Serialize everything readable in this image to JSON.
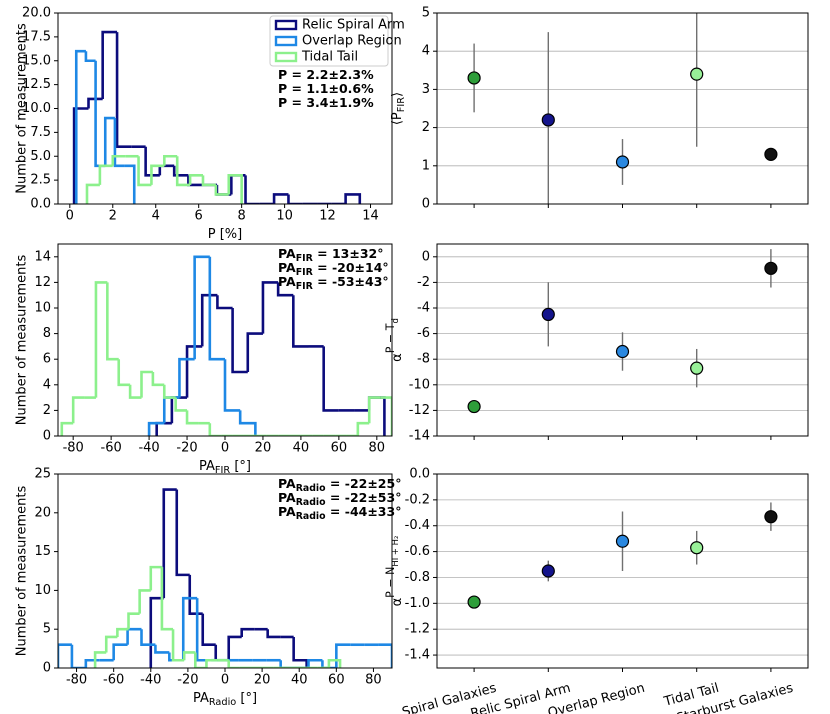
{
  "chart_data": [
    {
      "type": "histogram",
      "xlabel": {
        "main": "P [%]"
      },
      "ylabel": "Number of measurements",
      "xlim": [
        -0.55,
        15.0
      ],
      "xticks": [
        0,
        2,
        4,
        6,
        8,
        10,
        12,
        14
      ],
      "ylim": [
        0,
        20
      ],
      "yticks": [
        {
          "value": 0,
          "label": "0.0"
        },
        2.5,
        {
          "value": 5,
          "label": "5.0"
        },
        7.5,
        {
          "value": 10,
          "label": "10.0"
        },
        12.5,
        {
          "value": 15,
          "label": "15.0"
        },
        17.5,
        {
          "value": 20,
          "label": "20.0"
        }
      ],
      "legend": "upper right",
      "series": [
        {
          "name": "Relic Spiral Arm",
          "color": "#0c0c7c",
          "bins": [
            0.2,
            0.87,
            1.53,
            2.2,
            2.86,
            3.53,
            4.19,
            4.86,
            5.52,
            6.19,
            6.85,
            7.52,
            8.18,
            8.85,
            9.51,
            10.18,
            10.84,
            11.51,
            12.17,
            12.84,
            13.5
          ],
          "values": [
            10,
            11,
            18,
            6,
            6,
            3,
            4,
            3,
            2,
            2,
            1,
            3,
            0,
            0,
            1,
            0,
            0,
            0,
            0,
            1
          ]
        },
        {
          "name": "Overlap Region",
          "color": "#1e88e5",
          "bins": [
            0.3,
            0.75,
            1.2,
            1.65,
            2.1,
            2.55,
            3.0
          ],
          "values": [
            16,
            15,
            4,
            9,
            4,
            4
          ]
        },
        {
          "name": "Tidal Tail",
          "color": "#8cf08c",
          "bins": [
            0.8,
            1.4,
            2.0,
            2.6,
            3.2,
            3.8,
            4.4,
            5.0,
            5.6,
            6.2,
            6.8,
            7.4,
            8.0
          ],
          "values": [
            2,
            4,
            5,
            5,
            2,
            4,
            5,
            2,
            3,
            2,
            1,
            3
          ]
        }
      ],
      "annotations": [
        {
          "main": "P = 2.2±2.3%",
          "color": "#0c0c7c"
        },
        {
          "main": "P = 1.1±0.6%",
          "color": "#1e88e5"
        },
        {
          "main": "P = 3.4±1.9%",
          "color": "#8cf08c"
        }
      ]
    },
    {
      "type": "errorbar",
      "ylabel": {
        "main": "⟨P",
        "sub": "FIR",
        "tail": "⟩"
      },
      "ylim": [
        0,
        5
      ],
      "yticks": [
        0,
        1,
        2,
        3,
        4,
        5
      ],
      "grid": true,
      "values": [
        3.3,
        2.2,
        1.1,
        3.4,
        1.3
      ],
      "errors": [
        0.9,
        2.3,
        0.6,
        1.9,
        0.1
      ],
      "colors": [
        "#2e9e3a",
        "#14148c",
        "#2a88e0",
        "#98f098",
        "#111111"
      ]
    },
    {
      "type": "histogram",
      "xlabel": {
        "main": "PA",
        "sub": "FIR",
        "tail": " [°]"
      },
      "ylabel": "Number of measurements",
      "xlim": [
        -88,
        88
      ],
      "xticks": [
        -80,
        -60,
        -40,
        -20,
        0,
        20,
        40,
        60,
        80
      ],
      "ylim": [
        0,
        15
      ],
      "yticks": [
        0,
        2,
        4,
        6,
        8,
        10,
        12,
        14
      ],
      "series": [
        {
          "name": "Relic Spiral Arm",
          "color": "#0c0c7c",
          "bins": [
            -36,
            -28,
            -20,
            -12,
            -4,
            4,
            12,
            20,
            28,
            36,
            44,
            52,
            60,
            68,
            76,
            84
          ],
          "values": [
            1,
            3,
            7,
            11,
            10,
            5,
            8,
            12,
            11,
            7,
            7,
            2,
            2,
            2,
            3
          ]
        },
        {
          "name": "Overlap Region",
          "color": "#1e88e5",
          "bins": [
            -40,
            -32,
            -24,
            -16,
            -8,
            0,
            8,
            16
          ],
          "values": [
            1,
            3,
            6,
            14,
            6,
            2,
            1
          ]
        },
        {
          "name": "Tidal Tail",
          "color": "#8cf08c",
          "bins": [
            -86,
            -80,
            -74,
            -68,
            -62,
            -56,
            -50,
            -44,
            -38,
            -32,
            -26,
            -20,
            -14,
            -8,
            -2,
            4,
            10,
            16,
            22,
            28,
            34,
            40,
            46,
            52,
            58,
            64,
            70,
            76,
            82,
            88
          ],
          "values": [
            1,
            3,
            3,
            12,
            6,
            4,
            3,
            5,
            4,
            3,
            2,
            1,
            1,
            0,
            0,
            0,
            0,
            0,
            0,
            0,
            0,
            0,
            0,
            0,
            0,
            0,
            1,
            3,
            3
          ]
        }
      ],
      "annotations": [
        {
          "main": "PA",
          "sub": "FIR",
          "tail": " = 13±32°",
          "color": "#0c0c7c"
        },
        {
          "main": "PA",
          "sub": "FIR",
          "tail": " = -20±14°",
          "color": "#1e88e5"
        },
        {
          "main": "PA",
          "sub": "FIR",
          "tail": " = -53±43°",
          "color": "#8cf08c"
        }
      ]
    },
    {
      "type": "errorbar",
      "ylabel": {
        "main": "α",
        "sup": "P − T",
        "supsub": "d"
      },
      "ylim": [
        -14,
        1
      ],
      "yticks": [
        -14,
        -12,
        -10,
        -8,
        -6,
        -4,
        -2,
        0
      ],
      "grid": true,
      "values": [
        -11.7,
        -4.5,
        -7.4,
        -8.7,
        -0.9
      ],
      "errors": [
        0.2,
        2.5,
        1.5,
        1.5,
        1.5
      ],
      "colors": [
        "#2e9e3a",
        "#14148c",
        "#2a88e0",
        "#98f098",
        "#111111"
      ]
    },
    {
      "type": "histogram",
      "xlabel": {
        "main": "PA",
        "sub": "Radio",
        "tail": " [°]"
      },
      "ylabel": "Number of measurements",
      "xlim": [
        -90,
        90
      ],
      "xticks": [
        -80,
        -60,
        -40,
        -20,
        0,
        20,
        40,
        60,
        80
      ],
      "ylim": [
        0,
        25
      ],
      "yticks": [
        0,
        5,
        10,
        15,
        20,
        25
      ],
      "series": [
        {
          "name": "Relic Spiral Arm",
          "color": "#0c0c7c",
          "bins": [
            -40,
            -33,
            -26,
            -19,
            -12,
            -5,
            2,
            9,
            16,
            23,
            30,
            37,
            44
          ],
          "values": [
            9,
            23,
            12,
            7,
            3,
            1,
            4,
            5,
            5,
            4,
            4,
            1
          ]
        },
        {
          "name": "Overlap Region",
          "color": "#1e88e5",
          "bins": [
            -90,
            -82.5,
            -75,
            -67.5,
            -60,
            -52.5,
            -45,
            -37.5,
            -30,
            -22.5,
            -15,
            -7.5,
            0,
            7.5,
            15,
            22.5,
            30,
            37.5,
            45,
            52.5,
            60,
            67.5,
            75,
            82.5,
            90
          ],
          "values": [
            3,
            0,
            1,
            1,
            3,
            5,
            3,
            2,
            1,
            9,
            1,
            1,
            1,
            1,
            1,
            1,
            0,
            0,
            1,
            0,
            3,
            3,
            3,
            3
          ]
        },
        {
          "name": "Tidal Tail",
          "color": "#8cf08c",
          "bins": [
            -70,
            -64,
            -58,
            -52,
            -46,
            -40,
            -34,
            -28,
            -22,
            -16,
            -10,
            -4,
            2,
            8,
            14,
            20,
            26,
            32,
            38,
            44,
            50,
            56,
            62
          ],
          "values": [
            2,
            4,
            5,
            7,
            10,
            13,
            5,
            1,
            2,
            0,
            1,
            1,
            0,
            0,
            0,
            0,
            0,
            0,
            0,
            0,
            0,
            1
          ]
        }
      ],
      "annotations": [
        {
          "main": "PA",
          "sub": "Radio",
          "tail": " = -22±25°",
          "color": "#0c0c7c"
        },
        {
          "main": "PA",
          "sub": "Radio",
          "tail": " = -22±53°",
          "color": "#1e88e5"
        },
        {
          "main": "PA",
          "sub": "Radio",
          "tail": " = -44±33°",
          "color": "#8cf08c"
        }
      ]
    },
    {
      "type": "errorbar",
      "ylabel": {
        "main": "α",
        "sup": "P − N",
        "supsub": "HI + H₂"
      },
      "ylim": [
        -1.5,
        0
      ],
      "yticks": [
        -1.4,
        -1.2,
        {
          "value": -1.0,
          "label": "-1.0"
        },
        -0.8,
        -0.6,
        -0.4,
        -0.2,
        {
          "value": 0,
          "label": "0.0"
        }
      ],
      "grid": true,
      "categories": [
        "Spiral Galaxies",
        "Relic Spiral Arm",
        "Overlap Region",
        "Tidal Tail",
        "Starburst Galaxies"
      ],
      "values": [
        -0.99,
        -0.75,
        -0.52,
        -0.57,
        -0.33
      ],
      "errors": [
        0.02,
        0.08,
        0.23,
        0.13,
        0.11
      ],
      "colors": [
        "#2e9e3a",
        "#14148c",
        "#2a88e0",
        "#98f098",
        "#111111"
      ]
    }
  ]
}
